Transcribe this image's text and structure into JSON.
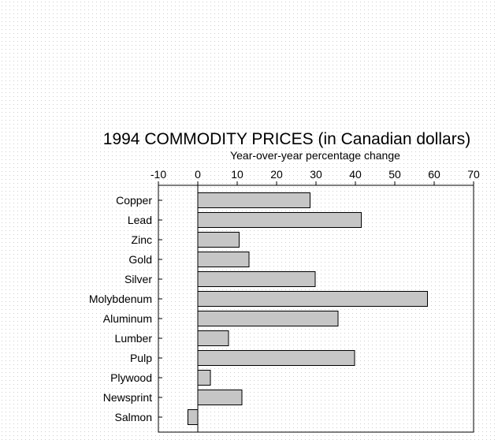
{
  "chart_data": {
    "type": "bar",
    "orientation": "horizontal",
    "title": "1994 COMMODITY PRICES (in Canadian dollars)",
    "subtitle": "Year-over-year percentage change",
    "xlabel": "",
    "ylabel": "",
    "xlim": [
      -10,
      70
    ],
    "x_ticks": [
      -10,
      0,
      10,
      20,
      30,
      40,
      50,
      60,
      70
    ],
    "grid": false,
    "categories": [
      "Copper",
      "Lead",
      "Zinc",
      "Gold",
      "Silver",
      "Molybdenum",
      "Aluminum",
      "Lumber",
      "Pulp",
      "Plywood",
      "Newsprint",
      "Salmon"
    ],
    "values": [
      28.5,
      41.5,
      10.5,
      13,
      29.8,
      58.3,
      35.6,
      7.8,
      39.8,
      3.2,
      11.2,
      -2.5
    ],
    "bar_color": "#c6c6c6"
  }
}
